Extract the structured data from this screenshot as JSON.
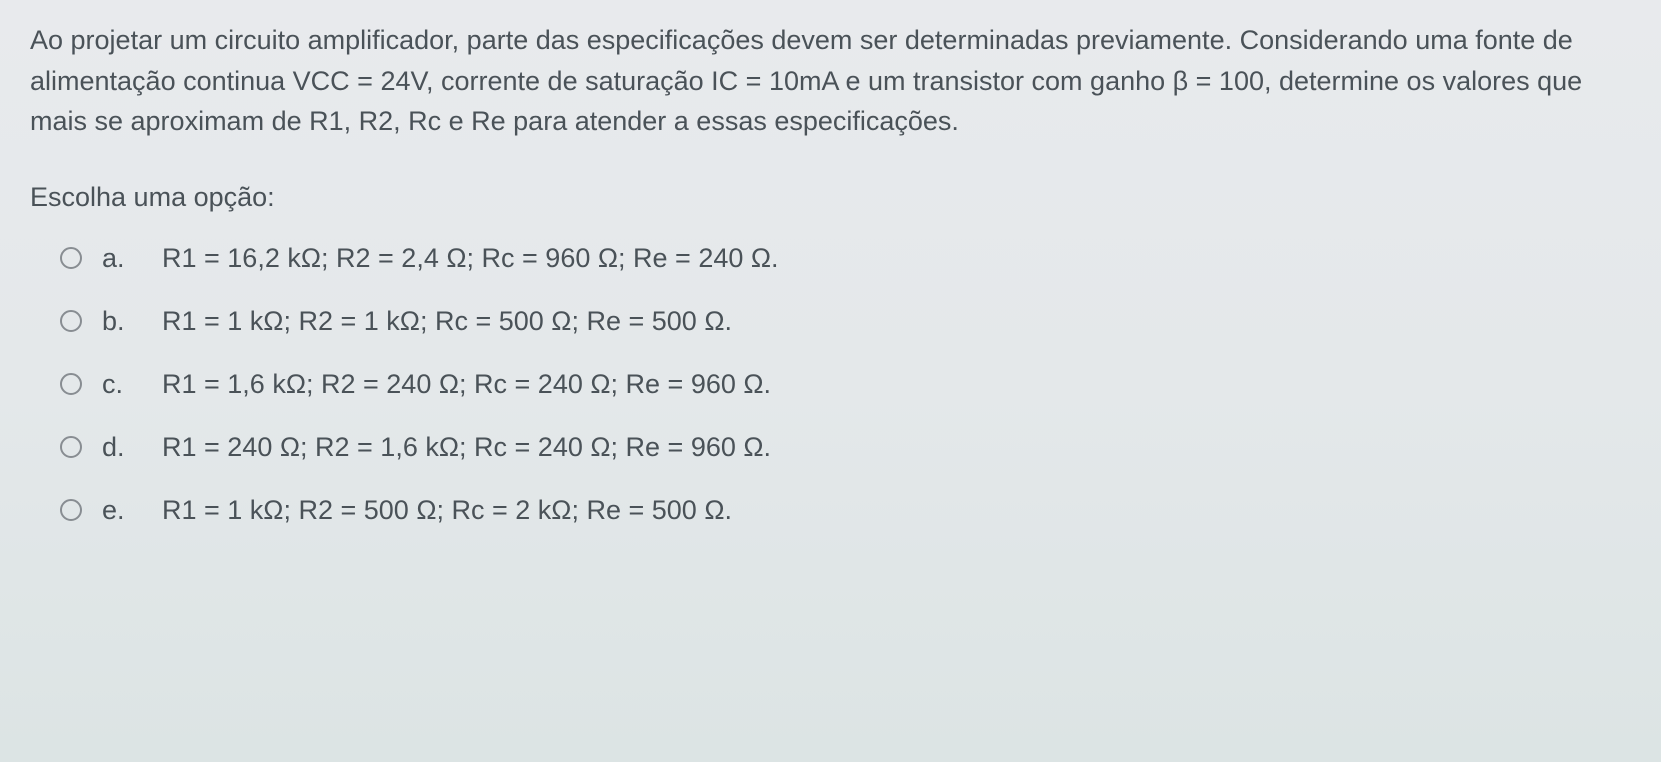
{
  "question": {
    "text": "Ao projetar um circuito amplificador, parte das especificações devem ser determinadas previamente. Considerando uma fonte de alimentação continua VCC = 24V, corrente de saturação IC = 10mA e um transistor com ganho β = 100, determine os valores que mais se aproximam de R1, R2, Rc e Re para atender a essas especificações."
  },
  "choose_label": "Escolha uma opção:",
  "options": [
    {
      "letter": "a.",
      "text": "R1 = 16,2 kΩ; R2 = 2,4 Ω; Rc = 960 Ω; Re = 240 Ω."
    },
    {
      "letter": "b.",
      "text": "R1 = 1 kΩ; R2 = 1 kΩ; Rc = 500 Ω; Re = 500 Ω."
    },
    {
      "letter": "c.",
      "text": "R1 = 1,6 kΩ; R2 = 240 Ω; Rc = 240 Ω; Re = 960 Ω."
    },
    {
      "letter": "d.",
      "text": "R1 = 240 Ω; R2 = 1,6 kΩ; Rc = 240 Ω; Re = 960 Ω."
    },
    {
      "letter": "e.",
      "text": "R1 = 1 kΩ; R2 = 500 Ω; Rc = 2 kΩ; Re = 500 Ω."
    }
  ],
  "styling": {
    "background_gradient_top": "#e8eaed",
    "background_gradient_bottom": "#dce4e4",
    "text_color": "#4a5258",
    "radio_border_color": "#888d92",
    "font_size_body": 27,
    "line_height": 1.5
  }
}
